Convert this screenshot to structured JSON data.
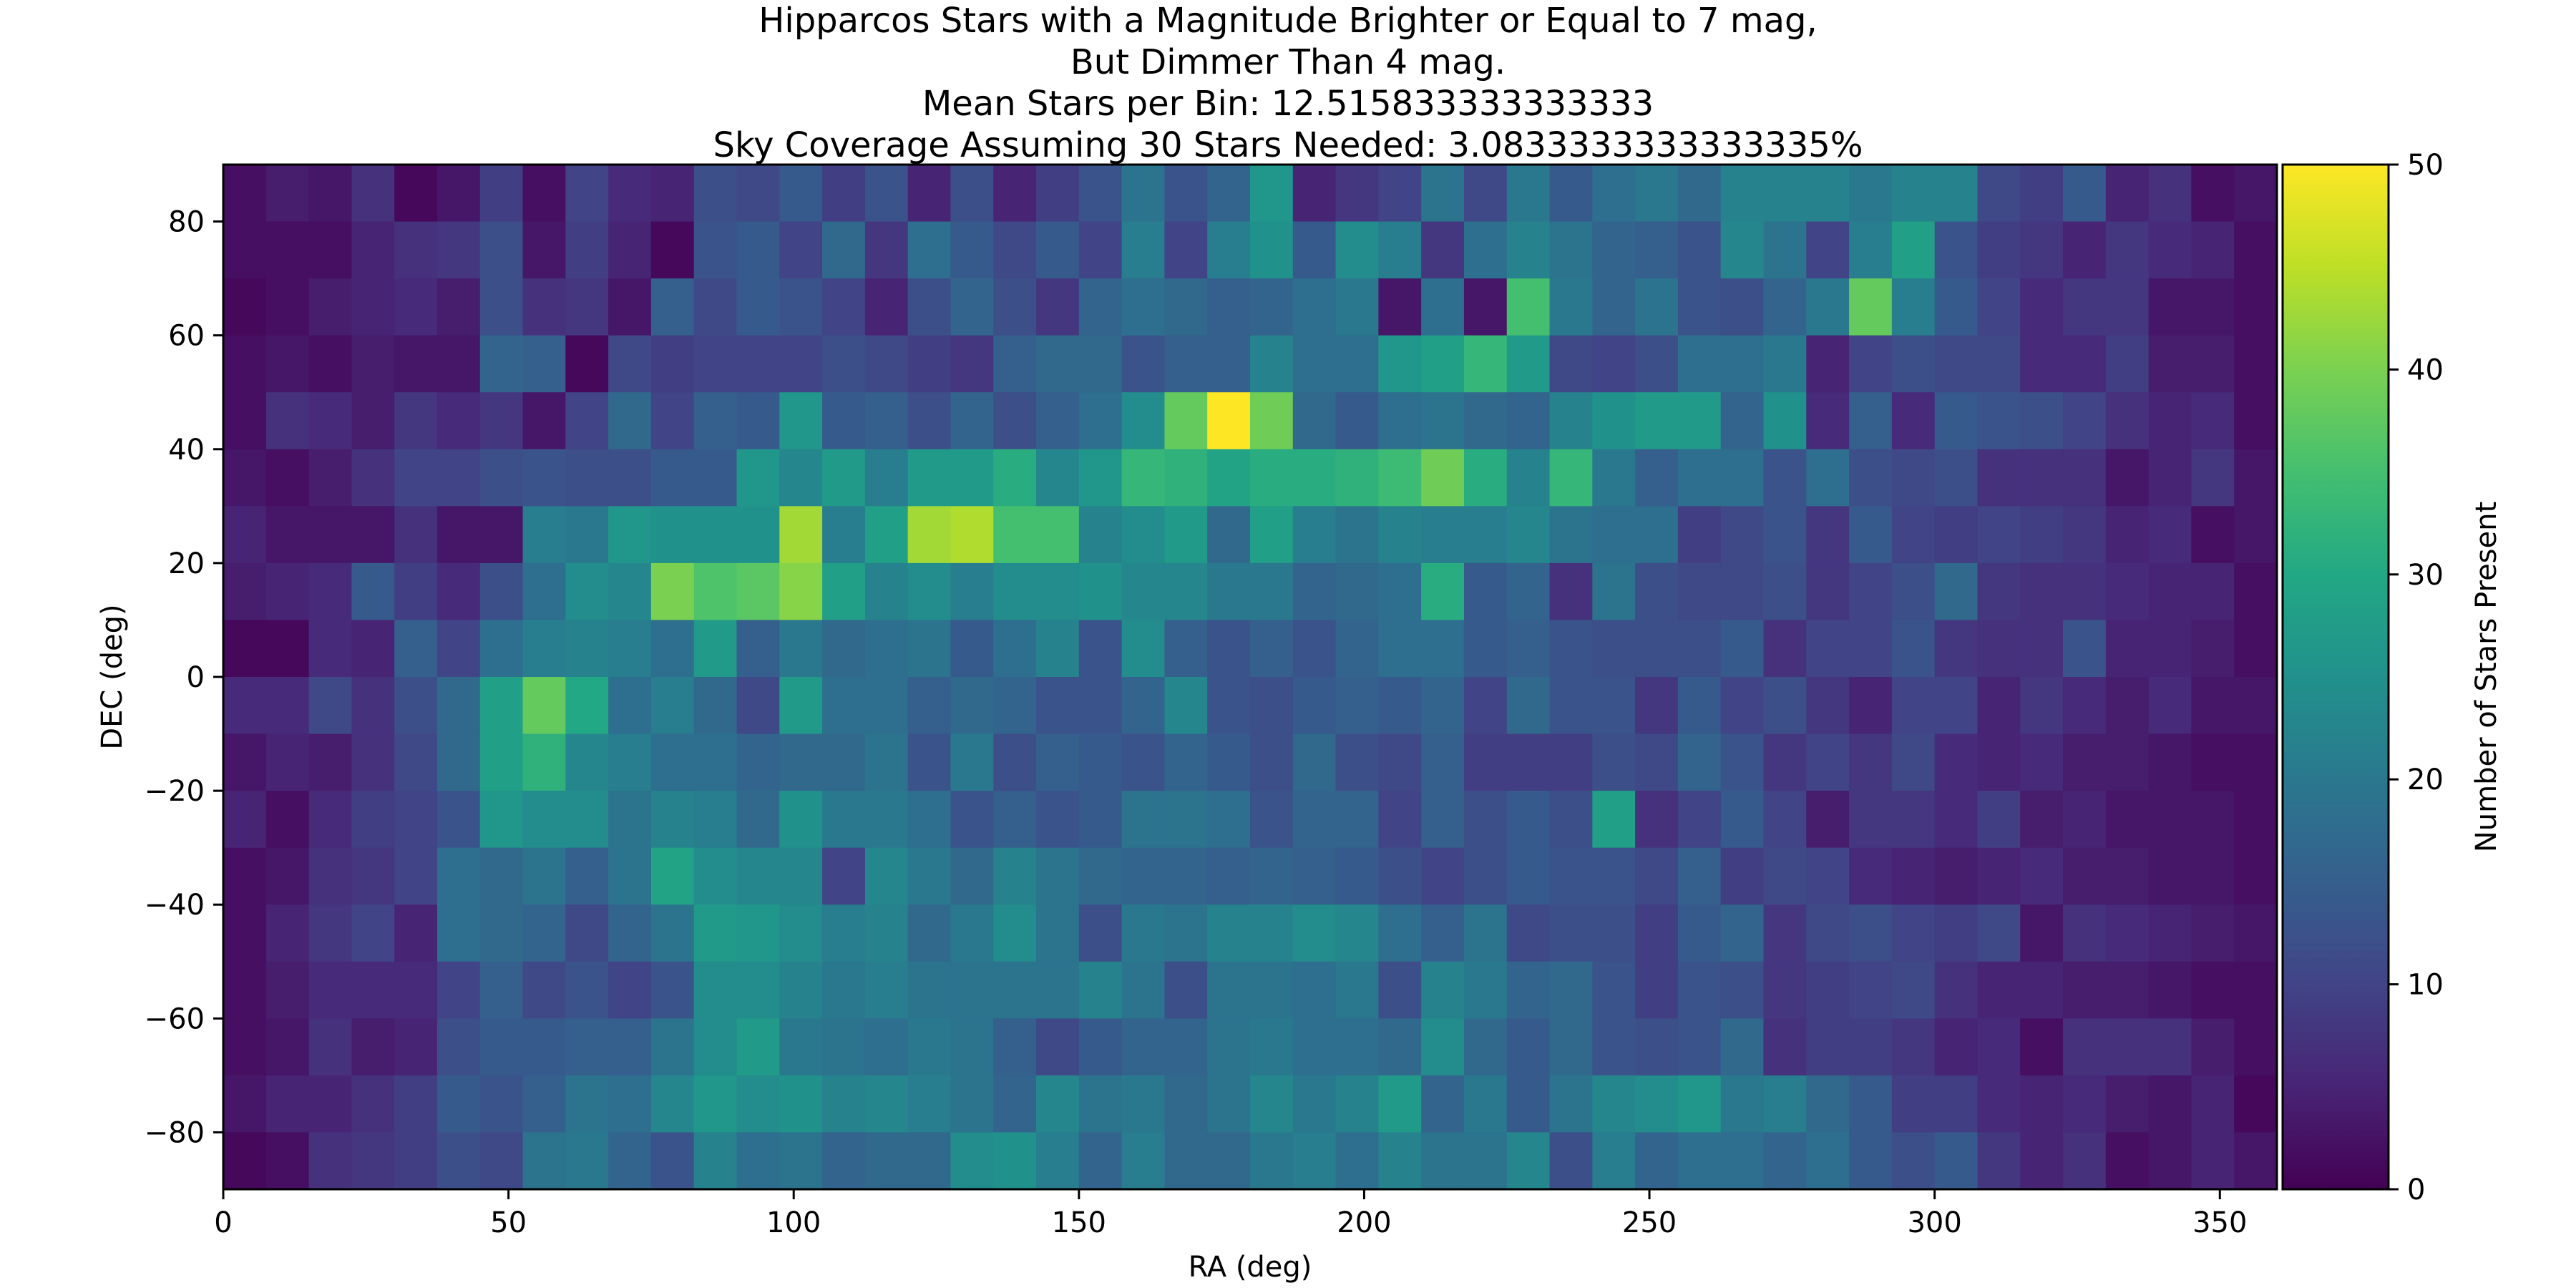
{
  "chart_data": {
    "type": "heatmap",
    "title_lines": [
      "Hipparcos Stars with a Magnitude Brighter or Equal to 7 mag,",
      "But Dimmer Than 4 mag.",
      "Mean Stars per Bin: 12.515833333333333",
      "Sky Coverage Assuming 30 Stars Needed: 3.0833333333333335%"
    ],
    "xlabel": "RA (deg)",
    "ylabel": "DEC (deg)",
    "colorbar_label": "Number of Stars Present",
    "xlim": [
      0,
      360
    ],
    "ylim": [
      -90,
      90
    ],
    "xticks": [
      0,
      50,
      100,
      150,
      200,
      250,
      300,
      350
    ],
    "yticks": [
      -80,
      -60,
      -40,
      -20,
      0,
      20,
      40,
      60,
      80
    ],
    "xtick_labels": [
      "0",
      "50",
      "100",
      "150",
      "200",
      "250",
      "300",
      "350"
    ],
    "ytick_labels": [
      "−80",
      "−60",
      "−40",
      "−20",
      "0",
      "20",
      "40",
      "60",
      "80"
    ],
    "colorbar_ticks": [
      0,
      10,
      20,
      30,
      40,
      50
    ],
    "colorbar_tick_labels": [
      "0",
      "10",
      "20",
      "30",
      "40",
      "50"
    ],
    "vmin": 0,
    "vmax": 50,
    "colormap": "viridis",
    "bins_ra": 48,
    "bins_dec": 18,
    "x_bin_edges_start": 0,
    "x_bin_width_deg": 7.5,
    "y_bin_edges_start": -90,
    "y_bin_width_deg": 10,
    "rows_note": "values[0] is the bin DEC 80..90 (top), last row is DEC -90..-80",
    "values": [
      [
        2,
        4,
        3,
        7,
        1,
        3,
        9,
        2,
        10,
        6,
        5,
        12,
        11,
        14,
        9,
        13,
        5,
        12,
        5,
        9,
        13,
        19,
        13,
        16,
        26,
        5,
        8,
        10,
        19,
        11,
        20,
        14,
        18,
        20,
        17,
        22,
        22,
        22,
        20,
        22,
        22,
        11,
        9,
        14,
        5,
        7,
        2,
        3
      ],
      [
        2,
        2,
        2,
        5,
        7,
        8,
        12,
        3,
        9,
        5,
        1,
        13,
        14,
        10,
        17,
        8,
        18,
        14,
        11,
        14,
        10,
        21,
        10,
        21,
        25,
        14,
        24,
        21,
        8,
        18,
        22,
        19,
        16,
        15,
        13,
        23,
        19,
        10,
        21,
        28,
        13,
        9,
        8,
        5,
        8,
        6,
        5,
        2
      ],
      [
        1,
        2,
        4,
        5,
        6,
        4,
        12,
        7,
        8,
        3,
        15,
        11,
        14,
        13,
        10,
        5,
        12,
        16,
        12,
        8,
        16,
        18,
        17,
        15,
        16,
        18,
        20,
        3,
        18,
        3,
        35,
        20,
        16,
        19,
        13,
        12,
        16,
        20,
        38,
        21,
        14,
        10,
        6,
        8,
        8,
        3,
        3,
        2
      ],
      [
        2,
        3,
        2,
        4,
        3,
        3,
        16,
        15,
        1,
        11,
        9,
        10,
        10,
        10,
        12,
        11,
        9,
        8,
        15,
        17,
        17,
        13,
        15,
        15,
        22,
        18,
        18,
        26,
        28,
        33,
        27,
        11,
        10,
        12,
        18,
        18,
        20,
        5,
        10,
        12,
        11,
        11,
        6,
        6,
        9,
        4,
        4,
        2
      ],
      [
        2,
        7,
        6,
        4,
        8,
        6,
        8,
        3,
        10,
        17,
        10,
        15,
        14,
        26,
        14,
        15,
        12,
        16,
        12,
        15,
        18,
        24,
        38,
        50,
        39,
        17,
        14,
        18,
        19,
        17,
        16,
        22,
        25,
        27,
        27,
        16,
        25,
        6,
        15,
        6,
        14,
        13,
        12,
        10,
        7,
        5,
        6,
        2
      ],
      [
        3,
        2,
        4,
        7,
        10,
        10,
        12,
        13,
        12,
        12,
        14,
        14,
        26,
        23,
        27,
        21,
        27,
        27,
        31,
        23,
        26,
        33,
        32,
        29,
        31,
        31,
        32,
        34,
        39,
        31,
        22,
        33,
        20,
        15,
        18,
        18,
        13,
        18,
        12,
        11,
        12,
        7,
        7,
        7,
        3,
        5,
        8,
        3
      ],
      [
        5,
        3,
        3,
        3,
        7,
        3,
        3,
        21,
        20,
        26,
        25,
        25,
        25,
        43,
        21,
        28,
        43,
        44,
        35,
        35,
        22,
        24,
        27,
        17,
        28,
        21,
        19,
        22,
        21,
        21,
        23,
        19,
        18,
        18,
        9,
        11,
        13,
        8,
        14,
        10,
        9,
        10,
        9,
        8,
        5,
        6,
        2,
        3
      ],
      [
        4,
        5,
        6,
        14,
        9,
        6,
        12,
        18,
        24,
        23,
        40,
        36,
        37,
        41,
        28,
        22,
        24,
        21,
        24,
        24,
        25,
        23,
        23,
        20,
        20,
        16,
        17,
        18,
        31,
        14,
        16,
        7,
        19,
        12,
        11,
        11,
        12,
        8,
        10,
        12,
        17,
        8,
        7,
        7,
        6,
        5,
        5,
        2
      ],
      [
        1,
        1,
        6,
        5,
        15,
        10,
        18,
        21,
        22,
        21,
        18,
        27,
        15,
        20,
        17,
        18,
        19,
        14,
        18,
        22,
        13,
        24,
        15,
        13,
        15,
        13,
        16,
        18,
        18,
        14,
        15,
        13,
        12,
        12,
        12,
        14,
        7,
        10,
        10,
        13,
        8,
        7,
        7,
        13,
        5,
        5,
        4,
        2
      ],
      [
        6,
        6,
        11,
        7,
        12,
        17,
        28,
        38,
        30,
        18,
        21,
        17,
        11,
        27,
        18,
        18,
        15,
        17,
        16,
        13,
        13,
        16,
        23,
        13,
        12,
        14,
        15,
        14,
        16,
        10,
        17,
        13,
        13,
        8,
        14,
        10,
        12,
        8,
        5,
        10,
        10,
        5,
        8,
        6,
        4,
        6,
        3,
        3
      ],
      [
        3,
        5,
        4,
        7,
        11,
        17,
        28,
        32,
        23,
        21,
        18,
        18,
        16,
        17,
        17,
        19,
        13,
        20,
        12,
        15,
        14,
        13,
        16,
        14,
        12,
        17,
        12,
        11,
        15,
        9,
        9,
        9,
        12,
        11,
        16,
        13,
        8,
        10,
        8,
        11,
        6,
        5,
        6,
        4,
        4,
        3,
        2,
        2
      ],
      [
        5,
        2,
        6,
        9,
        10,
        13,
        26,
        24,
        24,
        19,
        22,
        21,
        17,
        25,
        20,
        20,
        18,
        13,
        15,
        13,
        14,
        19,
        19,
        18,
        13,
        16,
        16,
        10,
        15,
        12,
        14,
        12,
        28,
        7,
        10,
        14,
        10,
        4,
        8,
        8,
        6,
        9,
        4,
        5,
        3,
        3,
        3,
        2
      ],
      [
        2,
        3,
        7,
        8,
        10,
        18,
        17,
        19,
        15,
        19,
        29,
        24,
        23,
        23,
        10,
        23,
        20,
        17,
        22,
        19,
        17,
        16,
        16,
        15,
        16,
        15,
        14,
        12,
        10,
        12,
        14,
        13,
        13,
        11,
        15,
        9,
        11,
        10,
        6,
        5,
        4,
        5,
        6,
        4,
        4,
        3,
        3,
        2
      ],
      [
        2,
        5,
        8,
        10,
        5,
        18,
        17,
        16,
        11,
        16,
        19,
        27,
        26,
        24,
        21,
        22,
        17,
        20,
        24,
        19,
        12,
        20,
        19,
        22,
        22,
        24,
        23,
        18,
        15,
        19,
        11,
        12,
        12,
        9,
        14,
        16,
        8,
        11,
        12,
        10,
        9,
        11,
        3,
        7,
        6,
        5,
        4,
        3
      ],
      [
        2,
        4,
        6,
        6,
        6,
        10,
        15,
        11,
        13,
        10,
        13,
        24,
        24,
        22,
        20,
        21,
        19,
        19,
        19,
        19,
        22,
        19,
        12,
        19,
        19,
        18,
        20,
        12,
        22,
        20,
        16,
        17,
        13,
        9,
        13,
        12,
        8,
        9,
        10,
        11,
        7,
        5,
        5,
        4,
        4,
        3,
        2,
        2
      ],
      [
        2,
        3,
        7,
        4,
        5,
        12,
        14,
        14,
        15,
        15,
        19,
        24,
        27,
        20,
        19,
        18,
        20,
        19,
        15,
        11,
        14,
        16,
        16,
        19,
        20,
        18,
        18,
        17,
        24,
        17,
        14,
        17,
        13,
        12,
        13,
        17,
        7,
        9,
        9,
        8,
        5,
        6,
        2,
        7,
        7,
        7,
        4,
        2
      ],
      [
        3,
        5,
        5,
        7,
        9,
        14,
        13,
        15,
        19,
        18,
        23,
        26,
        24,
        25,
        22,
        23,
        21,
        19,
        16,
        23,
        19,
        20,
        17,
        19,
        23,
        20,
        22,
        27,
        16,
        20,
        14,
        19,
        23,
        24,
        26,
        20,
        21,
        17,
        14,
        9,
        9,
        6,
        5,
        6,
        4,
        3,
        5,
        1
      ],
      [
        1,
        2,
        7,
        8,
        9,
        12,
        11,
        19,
        20,
        16,
        13,
        22,
        18,
        19,
        16,
        17,
        17,
        24,
        25,
        21,
        16,
        21,
        17,
        17,
        20,
        21,
        18,
        22,
        19,
        19,
        23,
        12,
        21,
        16,
        18,
        18,
        16,
        18,
        14,
        12,
        14,
        8,
        5,
        7,
        2,
        3,
        5,
        3
      ]
    ]
  }
}
